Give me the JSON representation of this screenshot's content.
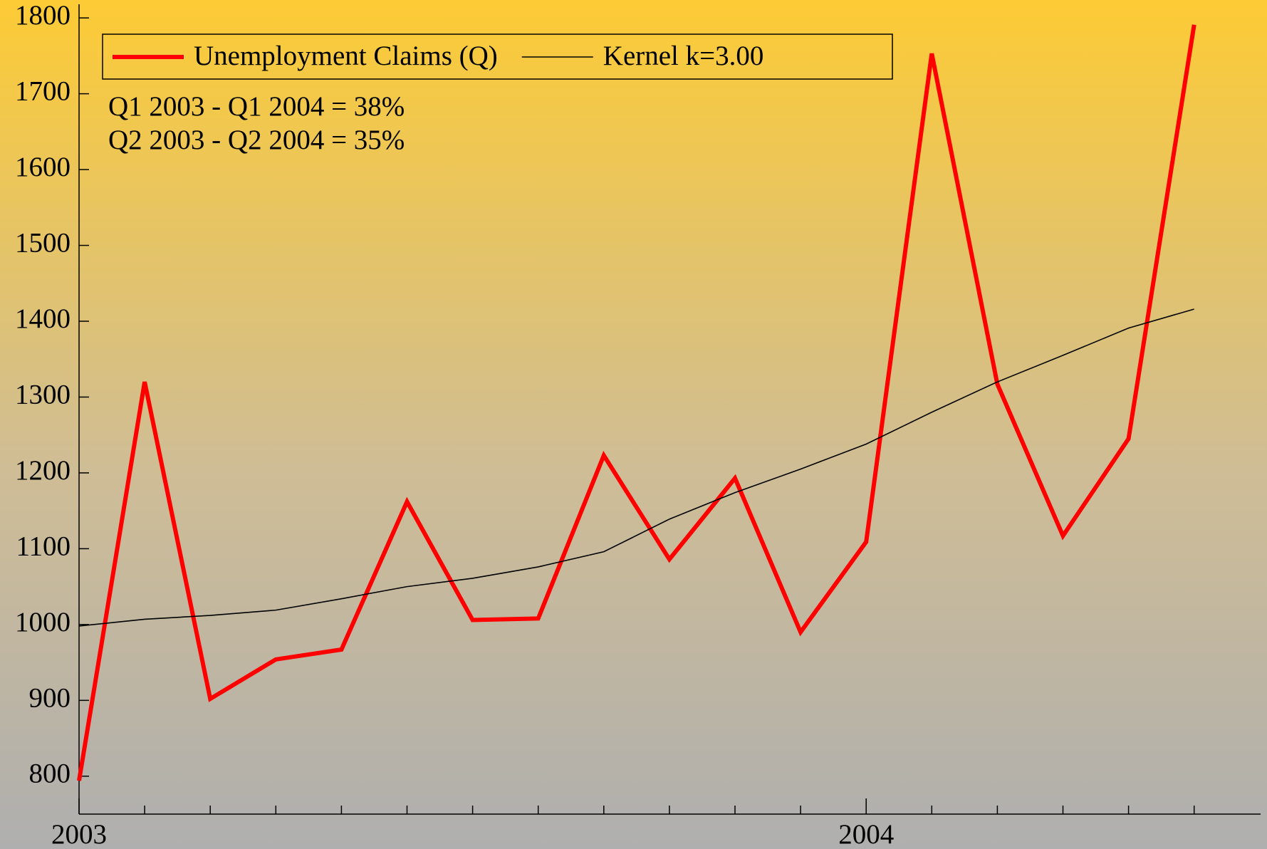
{
  "chart_data": {
    "type": "line",
    "annotations": [
      "Q1 2003 - Q1 2004 = 38%",
      "Q2 2003 - Q2 2004 = 35%"
    ],
    "categories": [
      "2003",
      null,
      null,
      null,
      null,
      null,
      null,
      null,
      null,
      null,
      null,
      null,
      "2004",
      null,
      null,
      null,
      null,
      null
    ],
    "series": [
      {
        "name": "Unemployment Claims (Q)",
        "color": "#ff0000",
        "values": [
          794,
          1320,
          902,
          954,
          967,
          1162,
          1006,
          1008,
          1223,
          1086,
          1193,
          990,
          1109,
          1753,
          1317,
          1117,
          1245,
          1791
        ]
      },
      {
        "name": "Kernel k=3.00",
        "color": "#000000",
        "values": [
          998,
          1007,
          1012,
          1019,
          1034,
          1050,
          1061,
          1076,
          1096,
          1139,
          1174,
          1205,
          1238,
          1280,
          1320,
          1355,
          1391,
          1416
        ]
      }
    ],
    "ylim": [
      750,
      1818
    ],
    "yticks": [
      800,
      900,
      1000,
      1100,
      1200,
      1300,
      1400,
      1500,
      1600,
      1700,
      1800
    ],
    "legend": "top-left",
    "grid": false
  }
}
